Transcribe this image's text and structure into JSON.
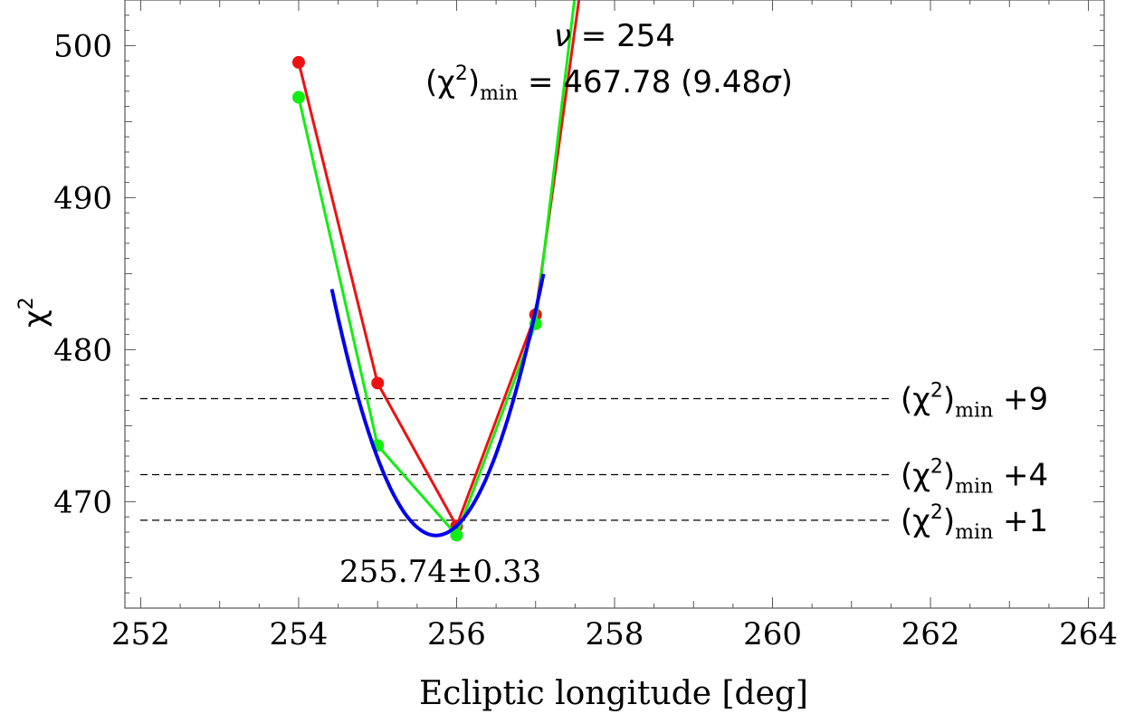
{
  "chart_data": {
    "type": "line",
    "xlabel": "Ecliptic longitude [deg]",
    "ylabel": "χ",
    "ylabel_sup": "2",
    "xlim": [
      251.8,
      264.2
    ],
    "ylim": [
      463,
      503
    ],
    "x_ticks": [
      252,
      254,
      256,
      258,
      260,
      262,
      264
    ],
    "x_tick_labels": [
      "252",
      "254",
      "256",
      "258",
      "260",
      "262",
      "264"
    ],
    "y_ticks": [
      470,
      480,
      490,
      500
    ],
    "y_tick_labels": [
      "470",
      "480",
      "490",
      "500"
    ],
    "grid": false,
    "series": [
      {
        "color": "#ee1111",
        "x": [
          254,
          255,
          256,
          257,
          258
        ],
        "y": [
          498.9,
          477.8,
          468.4,
          482.3,
          520
        ],
        "markers": true
      },
      {
        "color": "#11ee11",
        "x": [
          254,
          255,
          256,
          257,
          258
        ],
        "y": [
          496.6,
          473.7,
          467.8,
          481.7,
          525
        ],
        "markers": true
      },
      {
        "color": "#0000ee",
        "fit": "parabola",
        "center": 255.74,
        "min": 467.78,
        "curvature": 9.3,
        "x_range": [
          254.42,
          257.1
        ]
      }
    ],
    "threshold_lines": [
      {
        "y": 476.78,
        "label_prefix": "(χ",
        "label_sup": "2",
        "label_close": ")",
        "label_sub": "min",
        "label_suffix": " +9"
      },
      {
        "y": 471.78,
        "label_prefix": "(χ",
        "label_sup": "2",
        "label_close": ")",
        "label_sub": "min",
        "label_suffix": " +4"
      },
      {
        "y": 468.78,
        "label_prefix": "(χ",
        "label_sup": "2",
        "label_close": ")",
        "label_sub": "min",
        "label_suffix": " +1"
      }
    ],
    "annotations": {
      "nu_symbol": "ν",
      "nu_value": " = 254",
      "chimin_prefix": "(χ",
      "chimin_sup": "2",
      "chimin_close": ")",
      "chimin_sub": "min",
      "chimin_value": " = 467.78 (9.48",
      "chimin_sigma": "σ",
      "chimin_end": ")",
      "best_fit": "255.74±0.33"
    },
    "colors": {
      "red": "#ee1111",
      "green": "#11ee11",
      "blue": "#0000ee",
      "axis": "#555555"
    }
  }
}
